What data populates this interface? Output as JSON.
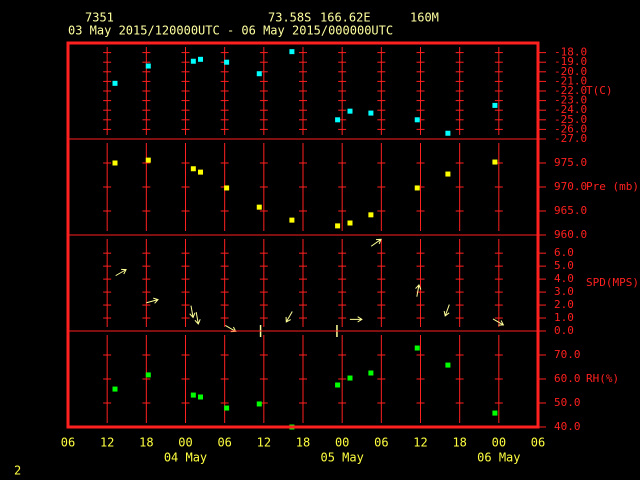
{
  "header": {
    "station": "7351",
    "latitude": "73.58S",
    "longitude": "166.62E",
    "elevation": "160M",
    "period": "03 May 2015/120000UTC - 06 May 2015/000000UTC"
  },
  "page_number": "2",
  "x_axis": {
    "xlim": [
      0,
      72
    ],
    "xticks": [
      {
        "value": 0,
        "label": "06"
      },
      {
        "value": 6,
        "label": "12"
      },
      {
        "value": 12,
        "label": "18"
      },
      {
        "value": 18,
        "label": "00"
      },
      {
        "value": 24,
        "label": "06"
      },
      {
        "value": 30,
        "label": "12"
      },
      {
        "value": 36,
        "label": "18"
      },
      {
        "value": 42,
        "label": "00"
      },
      {
        "value": 48,
        "label": "06"
      },
      {
        "value": 54,
        "label": "12"
      },
      {
        "value": 60,
        "label": "18"
      },
      {
        "value": 66,
        "label": "00"
      },
      {
        "value": 72,
        "label": "06"
      }
    ],
    "date_labels": [
      {
        "value": 18,
        "label": "04 May"
      },
      {
        "value": 42,
        "label": "05 May"
      },
      {
        "value": 66,
        "label": "06 May"
      }
    ]
  },
  "chart_data": [
    {
      "type": "scatter",
      "y_label": "T(C)",
      "color": "#00ffff",
      "ylim": [
        -27,
        -17
      ],
      "yticks": [
        {
          "value": -18,
          "label": "-18.0"
        },
        {
          "value": -19,
          "label": "-19.0"
        },
        {
          "value": -20,
          "label": "-20.0"
        },
        {
          "value": -21,
          "label": "-21.0"
        },
        {
          "value": -22,
          "label": "-22.0"
        },
        {
          "value": -23,
          "label": "-23.0"
        },
        {
          "value": -24,
          "label": "-24.0"
        },
        {
          "value": -25,
          "label": "-25.0"
        },
        {
          "value": -26,
          "label": "-26.0"
        },
        {
          "value": -27,
          "label": "-27.0"
        }
      ],
      "x": [
        7.2,
        12.3,
        19.2,
        20.3,
        24.3,
        29.3,
        34.3,
        41.3,
        43.2,
        46.4,
        53.5,
        58.2,
        65.4
      ],
      "values": [
        -21.2,
        -19.4,
        -18.9,
        -18.7,
        -19.0,
        -20.2,
        -17.9,
        -25.0,
        -24.1,
        -24.3,
        -25.0,
        -26.4,
        -23.5
      ]
    },
    {
      "type": "scatter",
      "y_label": "Pre (mb)",
      "color": "#ffff00",
      "ylim": [
        960,
        980
      ],
      "yticks": [
        {
          "value": 960,
          "label": "960.0"
        },
        {
          "value": 965,
          "label": "965.0"
        },
        {
          "value": 970,
          "label": "970.0"
        },
        {
          "value": 975,
          "label": "975.0"
        }
      ],
      "x": [
        7.2,
        12.3,
        19.2,
        20.3,
        24.3,
        29.3,
        34.3,
        41.3,
        43.2,
        46.4,
        53.5,
        58.2,
        65.4
      ],
      "values": [
        975.0,
        975.6,
        973.8,
        973.1,
        969.8,
        965.8,
        963.1,
        961.9,
        962.5,
        964.2,
        969.8,
        972.7,
        975.2
      ]
    },
    {
      "type": "wind",
      "y_label": "SPD(MPS)",
      "color": "#ffff99",
      "ylim": [
        0,
        7.4
      ],
      "yticks": [
        {
          "value": 0,
          "label": "0.0"
        },
        {
          "value": 1,
          "label": "1.0"
        },
        {
          "value": 2,
          "label": "2.0"
        },
        {
          "value": 3,
          "label": "3.0"
        },
        {
          "value": 4,
          "label": "4.0"
        },
        {
          "value": 5,
          "label": "5.0"
        },
        {
          "value": 6,
          "label": "6.0"
        }
      ],
      "x": [
        8.1,
        12.9,
        19.0,
        19.8,
        24.9,
        29.5,
        33.9,
        41.2,
        44.1,
        47.2,
        53.6,
        58.1,
        65.9
      ],
      "values": [
        4.5,
        2.3,
        1.5,
        1.0,
        0.2,
        0,
        1.1,
        0,
        0.9,
        6.8,
        3.1,
        1.6,
        0.7
      ],
      "directions": [
        60,
        75,
        170,
        170,
        120,
        0,
        210,
        0,
        90,
        55,
        10,
        200,
        120
      ]
    },
    {
      "type": "scatter",
      "y_label": "RH(%)",
      "color": "#00ff00",
      "ylim": [
        40,
        80
      ],
      "yticks": [
        {
          "value": 40,
          "label": "40.0"
        },
        {
          "value": 50,
          "label": "50.0"
        },
        {
          "value": 60,
          "label": "60.0"
        },
        {
          "value": 70,
          "label": "70.0"
        }
      ],
      "x": [
        7.2,
        12.3,
        19.2,
        20.3,
        24.3,
        29.3,
        34.3,
        41.3,
        43.2,
        46.4,
        53.5,
        58.2,
        65.4
      ],
      "values": [
        55.8,
        61.7,
        53.3,
        52.5,
        47.9,
        49.6,
        40.0,
        57.5,
        60.4,
        62.5,
        72.9,
        65.8,
        45.8
      ]
    }
  ]
}
